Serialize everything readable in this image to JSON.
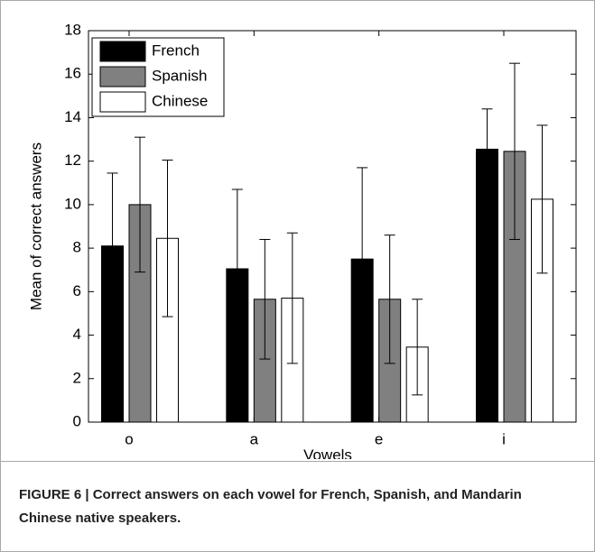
{
  "chart_data": {
    "type": "bar",
    "ylabel": "Mean of correct answers",
    "xlabel": "Vowels",
    "categories": [
      "o",
      "a",
      "e",
      "i"
    ],
    "series": [
      {
        "name": "French",
        "color": "#000000",
        "values": [
          8.1,
          7.05,
          7.5,
          12.55
        ],
        "errors": [
          3.35,
          3.65,
          4.2,
          1.85
        ]
      },
      {
        "name": "Spanish",
        "color": "#808080",
        "values": [
          10.0,
          5.65,
          5.65,
          12.45
        ],
        "errors": [
          3.1,
          2.75,
          2.95,
          4.05
        ]
      },
      {
        "name": "Chinese",
        "color": "#ffffff",
        "values": [
          8.45,
          5.7,
          3.45,
          10.25
        ],
        "errors": [
          3.6,
          3.0,
          2.2,
          3.4
        ]
      }
    ],
    "ylim": [
      0,
      18
    ],
    "yticks": [
      0,
      2,
      4,
      6,
      8,
      10,
      12,
      14,
      16,
      18
    ],
    "legend": "upper left",
    "caption": "FIGURE 6 | Correct answers on each vowel for French, Spanish, and Mandarin Chinese native speakers."
  }
}
